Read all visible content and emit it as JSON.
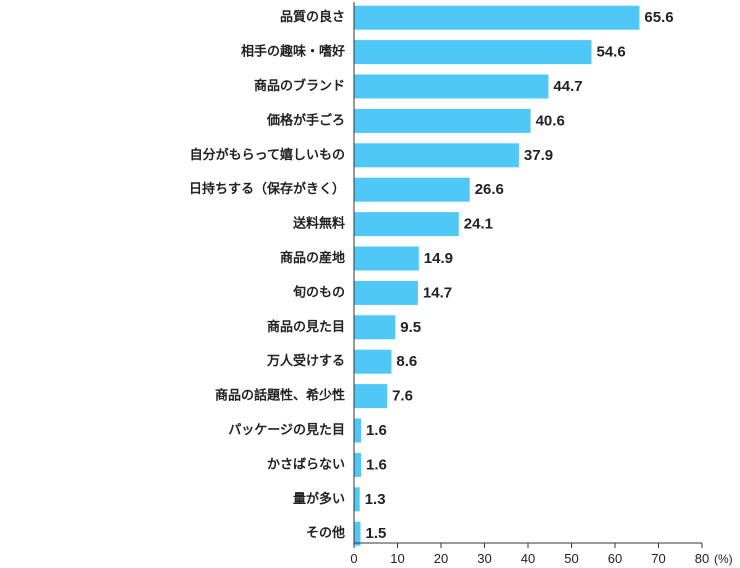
{
  "chart_data": {
    "type": "bar",
    "orientation": "horizontal",
    "categories": [
      "品質の良さ",
      "相手の趣味・嗜好",
      "商品のブランド",
      "価格が手ごろ",
      "自分がもらって嬉しいもの",
      "日持ちする（保存がきく）",
      "送料無料",
      "商品の産地",
      "旬のもの",
      "商品の見た目",
      "万人受けする",
      "商品の話題性、希少性",
      "パッケージの見た目",
      "かさばらない",
      "量が多い",
      "その他"
    ],
    "values": [
      65.6,
      54.6,
      44.7,
      40.6,
      37.9,
      26.6,
      24.1,
      14.9,
      14.7,
      9.5,
      8.6,
      7.6,
      1.6,
      1.6,
      1.3,
      1.5
    ],
    "value_labels": [
      "65.6",
      "54.6",
      "44.7",
      "40.6",
      "37.9",
      "26.6",
      "24.1",
      "14.9",
      "14.7",
      "9.5",
      "8.6",
      "7.6",
      "1.6",
      "1.6",
      "1.3",
      "1.5"
    ],
    "xlim": [
      0,
      80
    ],
    "x_ticks": [
      "0",
      "10",
      "20",
      "30",
      "40",
      "50",
      "60",
      "70",
      "80"
    ],
    "x_unit": "(%)",
    "bar_color": "#4fc8f7",
    "grid": false
  }
}
